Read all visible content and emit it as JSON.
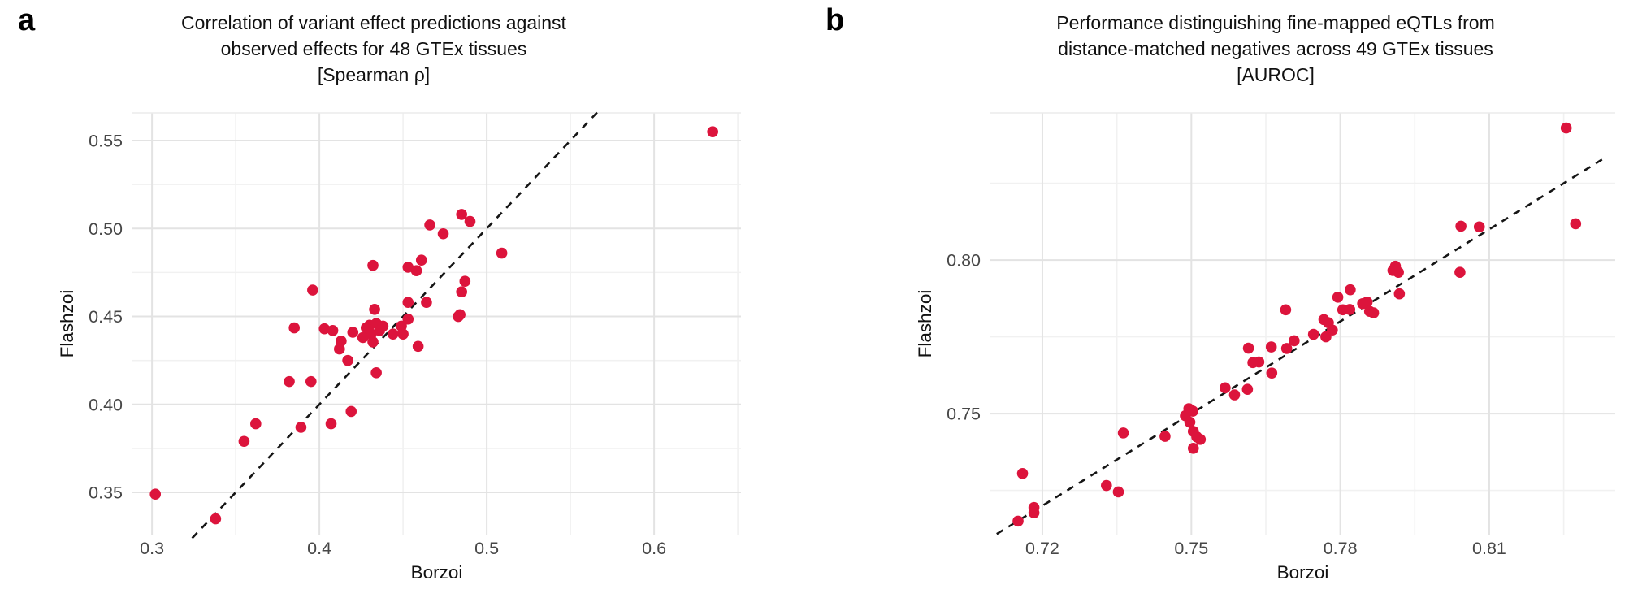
{
  "panels": {
    "a": {
      "letter": "a"
    },
    "b": {
      "letter": "b"
    }
  },
  "colors": {
    "point": "#DC143C",
    "grid_major": "#E3E3E3",
    "grid_minor": "#F1F1F1",
    "panel_edge": "#EBEBEB",
    "identity_line": "#151515",
    "tick_label": "#474747",
    "axis_title": "#111111",
    "title_text": "#111111"
  },
  "chart_data": [
    {
      "id": "panel-a",
      "type": "scatter",
      "title_lines": [
        "Correlation of variant effect predictions against",
        "observed effects for 48 GTEx tissues",
        "[Spearman ρ]"
      ],
      "xlabel": "Borzoi",
      "ylabel": "Flashzoi",
      "xlim": [
        0.2883,
        0.6519
      ],
      "ylim": [
        0.326,
        0.5657
      ],
      "xticks": [
        "0.3",
        "0.4",
        "0.5",
        "0.6"
      ],
      "xtick_values": [
        0.3,
        0.4,
        0.5,
        0.6
      ],
      "yticks": [
        "0.35",
        "0.40",
        "0.45",
        "0.50",
        "0.55"
      ],
      "ytick_values": [
        0.35,
        0.4,
        0.45,
        0.5,
        0.55
      ],
      "xminor": [
        0.35,
        0.45,
        0.55,
        0.65
      ],
      "yminor": [
        0.375,
        0.425,
        0.475,
        0.525
      ],
      "grid": true,
      "legend": "none",
      "identity_line": {
        "style": "dashed",
        "from": 0.324,
        "to": 0.567
      },
      "points": [
        [
          0.302,
          0.349
        ],
        [
          0.338,
          0.335
        ],
        [
          0.355,
          0.379
        ],
        [
          0.362,
          0.389
        ],
        [
          0.385,
          0.4435
        ],
        [
          0.382,
          0.413
        ],
        [
          0.395,
          0.413
        ],
        [
          0.389,
          0.387
        ],
        [
          0.407,
          0.389
        ],
        [
          0.419,
          0.396
        ],
        [
          0.417,
          0.425
        ],
        [
          0.412,
          0.4315
        ],
        [
          0.413,
          0.436
        ],
        [
          0.403,
          0.443
        ],
        [
          0.408,
          0.442
        ],
        [
          0.42,
          0.441
        ],
        [
          0.43,
          0.445
        ],
        [
          0.434,
          0.446
        ],
        [
          0.431,
          0.44
        ],
        [
          0.436,
          0.442
        ],
        [
          0.432,
          0.4355
        ],
        [
          0.428,
          0.4435
        ],
        [
          0.444,
          0.44
        ],
        [
          0.45,
          0.44
        ],
        [
          0.449,
          0.4445
        ],
        [
          0.453,
          0.4485
        ],
        [
          0.433,
          0.454
        ],
        [
          0.453,
          0.458
        ],
        [
          0.464,
          0.458
        ],
        [
          0.459,
          0.433
        ],
        [
          0.484,
          0.451
        ],
        [
          0.434,
          0.418
        ],
        [
          0.396,
          0.465
        ],
        [
          0.432,
          0.479
        ],
        [
          0.453,
          0.478
        ],
        [
          0.458,
          0.476
        ],
        [
          0.461,
          0.482
        ],
        [
          0.466,
          0.502
        ],
        [
          0.474,
          0.497
        ],
        [
          0.485,
          0.508
        ],
        [
          0.49,
          0.504
        ],
        [
          0.509,
          0.486
        ],
        [
          0.487,
          0.47
        ],
        [
          0.485,
          0.464
        ],
        [
          0.483,
          0.45
        ],
        [
          0.635,
          0.555
        ],
        [
          0.426,
          0.438
        ],
        [
          0.438,
          0.4445
        ]
      ]
    },
    {
      "id": "panel-b",
      "type": "scatter",
      "title_lines": [
        "Performance distinguishing fine-mapped eQTLs from",
        "distance-matched negatives across 49 GTEx tissues",
        "[AUROC]"
      ],
      "xlabel": "Borzoi",
      "ylabel": "Flashzoi",
      "xlim": [
        0.70953,
        0.83537
      ],
      "ylim": [
        0.7106,
        0.8479
      ],
      "xticks": [
        "0.72",
        "0.75",
        "0.78",
        "0.81"
      ],
      "xtick_values": [
        0.72,
        0.75,
        0.78,
        0.81
      ],
      "yticks": [
        "0.75",
        "0.80"
      ],
      "ytick_values": [
        0.75,
        0.8
      ],
      "xminor": [
        0.735,
        0.765,
        0.795,
        0.825
      ],
      "yminor": [
        0.725,
        0.775,
        0.825
      ],
      "grid": true,
      "legend": "none",
      "identity_line": {
        "style": "dashed",
        "from": 0.7108,
        "to": 0.8333
      },
      "points": [
        [
          0.7151,
          0.715
        ],
        [
          0.7183,
          0.7194
        ],
        [
          0.7183,
          0.7177
        ],
        [
          0.716,
          0.7305
        ],
        [
          0.7329,
          0.7266
        ],
        [
          0.7353,
          0.7245
        ],
        [
          0.7363,
          0.7437
        ],
        [
          0.7447,
          0.7426
        ],
        [
          0.7488,
          0.7493
        ],
        [
          0.7503,
          0.7508
        ],
        [
          0.7495,
          0.7516
        ],
        [
          0.7504,
          0.7442
        ],
        [
          0.7511,
          0.7424
        ],
        [
          0.7518,
          0.7416
        ],
        [
          0.7504,
          0.7387
        ],
        [
          0.7568,
          0.7584
        ],
        [
          0.7587,
          0.7561
        ],
        [
          0.7613,
          0.7579
        ],
        [
          0.7615,
          0.7713
        ],
        [
          0.7661,
          0.7717
        ],
        [
          0.7692,
          0.7712
        ],
        [
          0.7624,
          0.7666
        ],
        [
          0.7636,
          0.7668
        ],
        [
          0.7662,
          0.7632
        ],
        [
          0.769,
          0.7838
        ],
        [
          0.7707,
          0.7737
        ],
        [
          0.7746,
          0.7758
        ],
        [
          0.7767,
          0.7806
        ],
        [
          0.7776,
          0.7796
        ],
        [
          0.7784,
          0.7772
        ],
        [
          0.7771,
          0.775
        ],
        [
          0.7805,
          0.7838
        ],
        [
          0.7819,
          0.7839
        ],
        [
          0.782,
          0.7903
        ],
        [
          0.7795,
          0.7879
        ],
        [
          0.7854,
          0.7863
        ],
        [
          0.7859,
          0.7833
        ],
        [
          0.7867,
          0.7828
        ],
        [
          0.7911,
          0.798
        ],
        [
          0.7917,
          0.796
        ],
        [
          0.7906,
          0.7966
        ],
        [
          0.7919,
          0.789
        ],
        [
          0.8043,
          0.811
        ],
        [
          0.808,
          0.8108
        ],
        [
          0.8041,
          0.796
        ],
        [
          0.8274,
          0.8118
        ],
        [
          0.8255,
          0.843
        ],
        [
          0.7497,
          0.7472
        ],
        [
          0.7845,
          0.7858
        ]
      ]
    }
  ]
}
